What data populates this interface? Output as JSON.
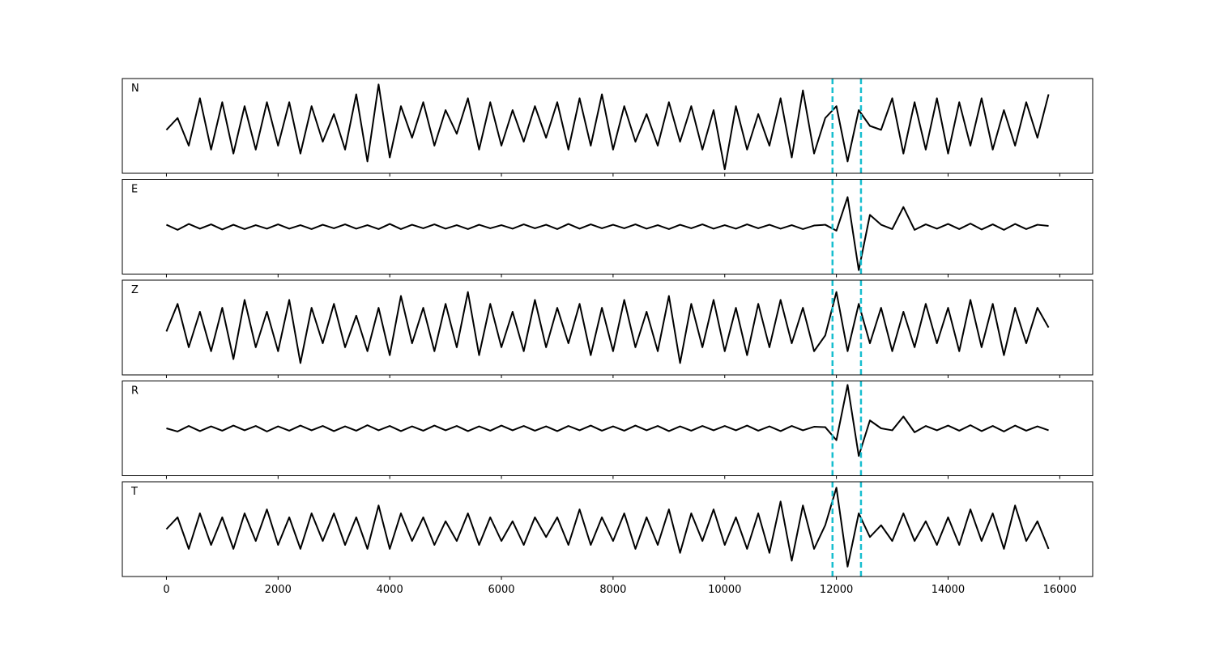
{
  "chart_data": {
    "type": "line",
    "x": [
      0,
      200,
      400,
      600,
      800,
      1000,
      1200,
      1400,
      1600,
      1800,
      2000,
      2200,
      2400,
      2600,
      2800,
      3000,
      3200,
      3400,
      3600,
      3800,
      4000,
      4200,
      4400,
      4600,
      4800,
      5000,
      5200,
      5400,
      5600,
      5800,
      6000,
      6200,
      6400,
      6600,
      6800,
      7000,
      7200,
      7400,
      7600,
      7800,
      8000,
      8200,
      8400,
      8600,
      8800,
      9000,
      9200,
      9400,
      9600,
      9800,
      10000,
      10200,
      10400,
      10600,
      10800,
      11000,
      11200,
      11400,
      11600,
      11800,
      12000,
      12200,
      12400,
      12600,
      12800,
      13000,
      13200,
      13400,
      13600,
      13800,
      14000,
      14200,
      14400,
      14600,
      14800,
      15000,
      15200,
      15400,
      15600,
      15800
    ],
    "xlim": [
      -790,
      16590
    ],
    "xticks": [
      0,
      2000,
      4000,
      6000,
      8000,
      10000,
      12000,
      14000,
      16000
    ],
    "ylim": [
      -1.2,
      1.2
    ],
    "color": "#000000",
    "vlines": [
      11930,
      12440
    ],
    "vline_color": "#17becf",
    "series": [
      {
        "name": "N",
        "values": [
          -0.1,
          0.2,
          -0.5,
          0.7,
          -0.6,
          0.6,
          -0.7,
          0.5,
          -0.6,
          0.6,
          -0.5,
          0.6,
          -0.7,
          0.5,
          -0.4,
          0.3,
          -0.6,
          0.8,
          -0.9,
          1.05,
          -0.8,
          0.5,
          -0.3,
          0.6,
          -0.5,
          0.4,
          -0.2,
          0.7,
          -0.6,
          0.6,
          -0.5,
          0.4,
          -0.4,
          0.5,
          -0.3,
          0.6,
          -0.6,
          0.7,
          -0.5,
          0.8,
          -0.6,
          0.5,
          -0.4,
          0.3,
          -0.5,
          0.6,
          -0.4,
          0.5,
          -0.6,
          0.4,
          -1.1,
          0.5,
          -0.6,
          0.3,
          -0.5,
          0.7,
          -0.8,
          0.9,
          -0.7,
          0.2,
          0.5,
          -0.9,
          0.4,
          0.0,
          -0.1,
          0.7,
          -0.7,
          0.6,
          -0.6,
          0.7,
          -0.7,
          0.6,
          -0.5,
          0.7,
          -0.6,
          0.4,
          -0.5,
          0.6,
          -0.3,
          0.8
        ]
      },
      {
        "name": "E",
        "values": [
          0.05,
          -0.08,
          0.07,
          -0.05,
          0.06,
          -0.07,
          0.05,
          -0.06,
          0.04,
          -0.05,
          0.06,
          -0.05,
          0.04,
          -0.06,
          0.05,
          -0.04,
          0.06,
          -0.05,
          0.04,
          -0.06,
          0.07,
          -0.06,
          0.05,
          -0.04,
          0.06,
          -0.05,
          0.04,
          -0.06,
          0.05,
          -0.04,
          0.04,
          -0.05,
          0.06,
          -0.04,
          0.05,
          -0.06,
          0.07,
          -0.05,
          0.06,
          -0.04,
          0.05,
          -0.04,
          0.06,
          -0.05,
          0.04,
          -0.06,
          0.05,
          -0.04,
          0.06,
          -0.05,
          0.04,
          -0.05,
          0.06,
          -0.04,
          0.05,
          -0.05,
          0.04,
          -0.06,
          0.03,
          0.05,
          -0.1,
          0.75,
          -1.1,
          0.3,
          0.05,
          -0.06,
          0.5,
          -0.08,
          0.06,
          -0.05,
          0.07,
          -0.06,
          0.08,
          -0.07,
          0.06,
          -0.08,
          0.07,
          -0.06,
          0.05,
          0.02
        ]
      },
      {
        "name": "Z",
        "values": [
          -0.1,
          0.6,
          -0.5,
          0.4,
          -0.6,
          0.5,
          -0.8,
          0.7,
          -0.5,
          0.4,
          -0.6,
          0.7,
          -0.9,
          0.5,
          -0.4,
          0.6,
          -0.5,
          0.3,
          -0.6,
          0.5,
          -0.7,
          0.8,
          -0.4,
          0.5,
          -0.6,
          0.6,
          -0.5,
          0.9,
          -0.7,
          0.6,
          -0.5,
          0.4,
          -0.6,
          0.7,
          -0.5,
          0.5,
          -0.4,
          0.6,
          -0.7,
          0.5,
          -0.6,
          0.7,
          -0.5,
          0.4,
          -0.6,
          0.8,
          -0.9,
          0.6,
          -0.5,
          0.7,
          -0.6,
          0.5,
          -0.7,
          0.6,
          -0.5,
          0.7,
          -0.4,
          0.5,
          -0.6,
          -0.2,
          0.9,
          -0.6,
          0.6,
          -0.4,
          0.5,
          -0.6,
          0.4,
          -0.5,
          0.6,
          -0.4,
          0.5,
          -0.6,
          0.7,
          -0.5,
          0.6,
          -0.7,
          0.5,
          -0.4,
          0.5,
          0.0
        ]
      },
      {
        "name": "R",
        "values": [
          0.0,
          -0.08,
          0.06,
          -0.07,
          0.05,
          -0.06,
          0.07,
          -0.05,
          0.06,
          -0.08,
          0.05,
          -0.06,
          0.07,
          -0.05,
          0.06,
          -0.07,
          0.05,
          -0.06,
          0.08,
          -0.05,
          0.06,
          -0.07,
          0.05,
          -0.06,
          0.07,
          -0.05,
          0.06,
          -0.07,
          0.05,
          -0.06,
          0.07,
          -0.05,
          0.06,
          -0.06,
          0.05,
          -0.07,
          0.06,
          -0.05,
          0.07,
          -0.06,
          0.05,
          -0.06,
          0.07,
          -0.05,
          0.06,
          -0.07,
          0.05,
          -0.06,
          0.06,
          -0.05,
          0.06,
          -0.05,
          0.07,
          -0.06,
          0.05,
          -0.07,
          0.06,
          -0.05,
          0.04,
          0.03,
          -0.3,
          1.1,
          -0.7,
          0.2,
          0.0,
          -0.05,
          0.3,
          -0.1,
          0.06,
          -0.05,
          0.07,
          -0.06,
          0.08,
          -0.07,
          0.06,
          -0.08,
          0.07,
          -0.06,
          0.05,
          -0.05
        ]
      },
      {
        "name": "T",
        "values": [
          0.0,
          0.3,
          -0.5,
          0.4,
          -0.4,
          0.3,
          -0.5,
          0.4,
          -0.3,
          0.5,
          -0.4,
          0.3,
          -0.5,
          0.4,
          -0.3,
          0.4,
          -0.4,
          0.3,
          -0.5,
          0.6,
          -0.5,
          0.4,
          -0.3,
          0.3,
          -0.4,
          0.2,
          -0.3,
          0.4,
          -0.4,
          0.3,
          -0.3,
          0.2,
          -0.4,
          0.3,
          -0.2,
          0.3,
          -0.4,
          0.5,
          -0.4,
          0.3,
          -0.3,
          0.4,
          -0.5,
          0.3,
          -0.4,
          0.5,
          -0.6,
          0.4,
          -0.3,
          0.5,
          -0.4,
          0.3,
          -0.5,
          0.4,
          -0.6,
          0.7,
          -0.8,
          0.6,
          -0.5,
          0.1,
          1.05,
          -0.95,
          0.4,
          -0.2,
          0.1,
          -0.3,
          0.4,
          -0.3,
          0.2,
          -0.4,
          0.3,
          -0.4,
          0.5,
          -0.3,
          0.4,
          -0.5,
          0.6,
          -0.3,
          0.2,
          -0.5
        ]
      }
    ]
  }
}
